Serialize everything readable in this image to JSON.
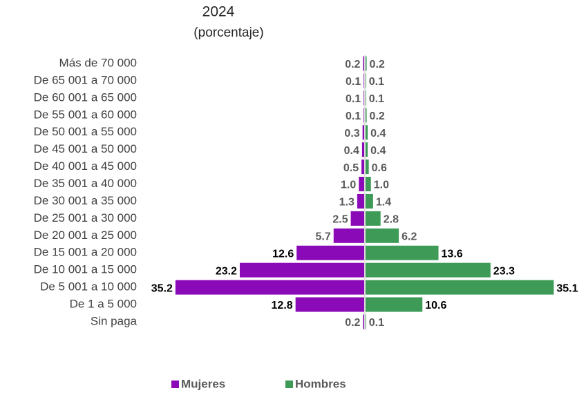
{
  "chart_data": {
    "type": "pyramid",
    "title": "2024",
    "subtitle": "(porcentaje)",
    "categories": [
      "Más de 70 000",
      "De 65 001 a 70 000",
      "De 60 001 a 65 000",
      "De 55 001 a 60 000",
      "De 50 001 a 55 000",
      "De 45 001 a 50 000",
      "De 40 001 a 45 000",
      "De 35 001 a 40 000",
      "De 30 001 a 35 000",
      "De 25 001 a 30 000",
      "De 20 001 a 25 000",
      "De 15 001 a 20 000",
      "De 10 001 a 15 000",
      "De 5 001 a 10 000",
      "De 1 a 5 000",
      "Sin paga"
    ],
    "series": [
      {
        "name": "Mujeres",
        "color": "#8a0ab8",
        "values": [
          0.2,
          0.1,
          0.1,
          0.1,
          0.3,
          0.4,
          0.5,
          1.0,
          1.3,
          2.5,
          5.7,
          12.6,
          23.2,
          35.2,
          12.8,
          0.2
        ],
        "value_labels": [
          "0.2",
          "0.1",
          "0.1",
          "0.1",
          "0.3",
          "0.4",
          "0.5",
          "1.0",
          "1.3",
          "2.5",
          "5.7",
          "12.6",
          "23.2",
          "35.2",
          "12.8",
          "0.2"
        ]
      },
      {
        "name": "Hombres",
        "color": "#3e9b57",
        "values": [
          0.2,
          0.1,
          0.1,
          0.2,
          0.4,
          0.4,
          0.6,
          1.0,
          1.4,
          2.8,
          6.2,
          13.6,
          23.3,
          35.1,
          10.6,
          0.1
        ],
        "value_labels": [
          "0.2",
          "0.1",
          "0.1",
          "0.2",
          "0.4",
          "0.4",
          "0.6",
          "1.0",
          "1.4",
          "2.8",
          "6.2",
          "13.6",
          "23.3",
          "35.1",
          "10.6",
          "0.1"
        ]
      }
    ]
  }
}
